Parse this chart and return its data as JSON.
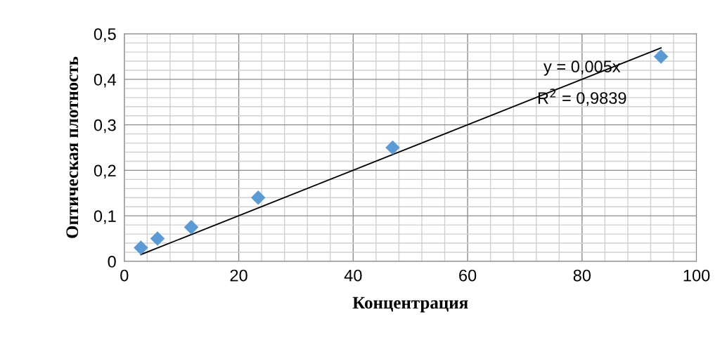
{
  "chart_data": {
    "type": "scatter",
    "xlabel": "Концентрация",
    "ylabel": "Оптическая плотность",
    "x": [
      2.9,
      5.8,
      11.7,
      23.4,
      46.9,
      93.8
    ],
    "series": [
      {
        "color": "#5b9bd5",
        "marker": "diamond",
        "values": [
          0.03,
          0.05,
          0.075,
          0.14,
          0.25,
          0.45
        ]
      },
      {
        "type": "line",
        "color": "#000000",
        "x": [
          2.9,
          93.8
        ],
        "values": [
          0.015,
          0.469
        ]
      }
    ],
    "annotations": [
      "y = 0,005x",
      "R$^{2}$ = 0,9839"
    ],
    "xlim": [
      0,
      100
    ],
    "xticks": [
      0,
      20,
      40,
      60,
      80,
      100
    ],
    "ylim": [
      0,
      0.5
    ],
    "yticks": [
      0,
      {
        "value": 0.1,
        "label": "0,1"
      },
      {
        "value": 0.2,
        "label": "0,2"
      },
      {
        "value": 0.3,
        "label": "0,3"
      },
      {
        "value": 0.4,
        "label": "0,4"
      },
      {
        "value": 0.5,
        "label": "0,5"
      }
    ],
    "grid": true,
    "legend": false
  }
}
